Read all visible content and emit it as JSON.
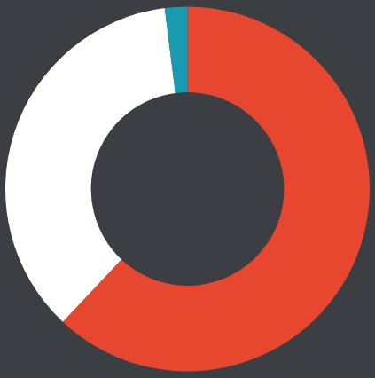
{
  "chart_data": {
    "type": "pie",
    "values": [
      62,
      36,
      2
    ],
    "colors": [
      "#e8472f",
      "#ffffff",
      "#1a9bb0"
    ],
    "data_labels": false
  }
}
